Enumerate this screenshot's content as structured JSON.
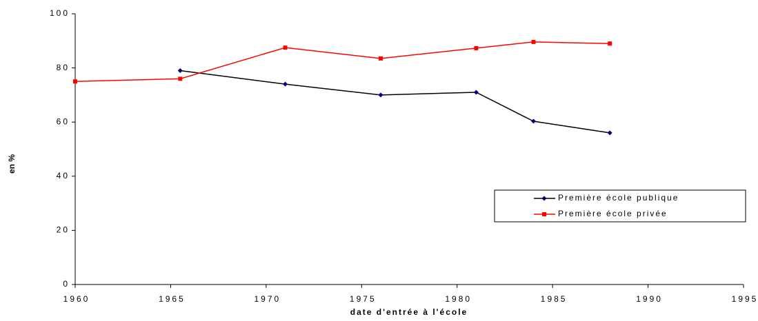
{
  "chart_data": {
    "type": "line",
    "xlabel": "date d'entrée à l'école",
    "ylabel": "en %",
    "x": [
      1960,
      1965.5,
      1971,
      1976,
      1981,
      1984,
      1988
    ],
    "series": [
      {
        "name": "Première école publique",
        "color": "#000000",
        "marker_color": "#000080",
        "marker": "diamond",
        "values": [
          null,
          79,
          74,
          70,
          71,
          60.3,
          56
        ]
      },
      {
        "name": "Première école privée",
        "color": "#ff0000",
        "marker_color": "#ff0000",
        "marker": "square",
        "values": [
          75,
          76,
          87.5,
          83.5,
          87.3,
          89.6,
          89
        ]
      }
    ],
    "xlim": [
      1960,
      1995
    ],
    "xticks": [
      1960,
      1965,
      1970,
      1975,
      1980,
      1985,
      1990,
      1995
    ],
    "ylim": [
      0,
      100
    ],
    "yticks": [
      0,
      20,
      40,
      60,
      80,
      100
    ],
    "grid": false,
    "legend": "right"
  }
}
